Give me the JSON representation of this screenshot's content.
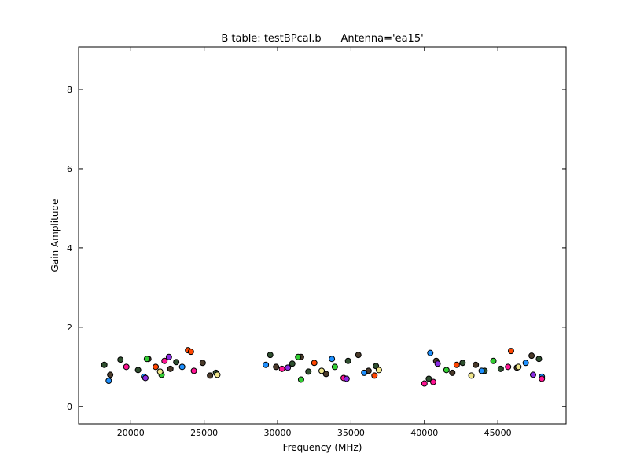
{
  "chart_data": {
    "type": "scatter",
    "title": "B table: testBPcal.b      Antenna='ea15'",
    "x_label": "Frequency (MHz)",
    "y_label": "Gain Amplitude",
    "xlim": [
      16450,
      49650
    ],
    "ylim": [
      -0.44,
      9.07
    ],
    "xticks": [
      20000,
      25000,
      30000,
      35000,
      40000,
      45000
    ],
    "yticks": [
      0,
      2,
      4,
      6,
      8
    ],
    "series": [
      {
        "color": "#2f4f2f",
        "x": [
          18200,
          20500,
          23100,
          25800,
          19300,
          29500,
          32100,
          34800,
          36700,
          31000,
          40300,
          42600,
          45200,
          47800,
          44100
        ],
        "values": [
          1.05,
          0.92,
          1.12,
          0.85,
          1.18,
          1.3,
          0.88,
          1.15,
          1.02,
          1.08,
          0.7,
          1.1,
          0.95,
          1.2,
          0.9
        ]
      },
      {
        "color": "#4a3a2a",
        "x": [
          18600,
          21200,
          22700,
          24900,
          25400,
          29900,
          31600,
          33300,
          35500,
          36200,
          40800,
          41900,
          43500,
          46300,
          47300
        ],
        "values": [
          0.8,
          1.2,
          0.95,
          1.1,
          0.78,
          1.0,
          1.25,
          0.82,
          1.3,
          0.9,
          1.15,
          0.85,
          1.05,
          0.98,
          1.28
        ]
      },
      {
        "color": "#1e90ff",
        "x": [
          18500,
          20900,
          23500,
          29200,
          33700,
          35900,
          40400,
          43900,
          46900,
          48000
        ],
        "values": [
          0.65,
          0.75,
          1.0,
          1.05,
          1.2,
          0.85,
          1.35,
          0.9,
          1.1,
          0.75
        ]
      },
      {
        "color": "#ff1493",
        "x": [
          19700,
          22300,
          24300,
          30300,
          34500,
          40000,
          40600,
          45700,
          48000
        ],
        "values": [
          1.0,
          1.15,
          0.9,
          0.95,
          0.72,
          0.58,
          0.62,
          1.0,
          0.7
        ]
      },
      {
        "color": "#ff4500",
        "x": [
          23900,
          24100,
          21700,
          32500,
          36600,
          42200,
          45900
        ],
        "values": [
          1.42,
          1.38,
          1.0,
          1.1,
          0.78,
          1.05,
          1.4
        ]
      },
      {
        "color": "#32cd32",
        "x": [
          21100,
          22100,
          31400,
          31600,
          33900,
          41500,
          44700
        ],
        "values": [
          1.2,
          0.8,
          1.25,
          0.68,
          1.0,
          0.92,
          1.15
        ]
      },
      {
        "color": "#8a2be2",
        "x": [
          21000,
          22600,
          30700,
          34700,
          40900,
          47400
        ],
        "values": [
          0.72,
          1.25,
          0.98,
          0.7,
          1.08,
          0.8
        ]
      },
      {
        "color": "#f0e68c",
        "x": [
          22000,
          25900,
          33000,
          36900,
          43200,
          46400
        ],
        "values": [
          0.88,
          0.8,
          0.9,
          0.92,
          0.78,
          1.0
        ]
      }
    ]
  }
}
